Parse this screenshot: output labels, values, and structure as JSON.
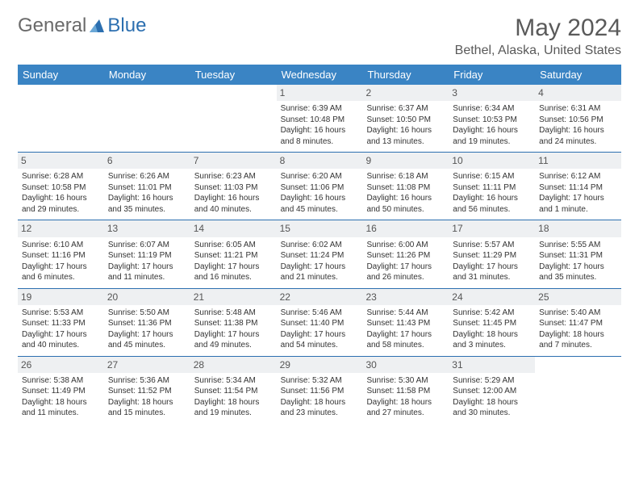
{
  "logo": {
    "general": "General",
    "blue": "Blue",
    "icon_color": "#2c6fb0"
  },
  "header": {
    "month_title": "May 2024",
    "location": "Bethel, Alaska, United States"
  },
  "colors": {
    "header_bg": "#3a84c4",
    "row_border": "#2c6fb0",
    "daynum_bg": "#eef0f2",
    "text": "#333333",
    "title_text": "#5a5a5a"
  },
  "weekdays": [
    "Sunday",
    "Monday",
    "Tuesday",
    "Wednesday",
    "Thursday",
    "Friday",
    "Saturday"
  ],
  "weeks": [
    [
      {
        "day": "",
        "sunrise": "",
        "sunset": "",
        "daylight1": "",
        "daylight2": ""
      },
      {
        "day": "",
        "sunrise": "",
        "sunset": "",
        "daylight1": "",
        "daylight2": ""
      },
      {
        "day": "",
        "sunrise": "",
        "sunset": "",
        "daylight1": "",
        "daylight2": ""
      },
      {
        "day": "1",
        "sunrise": "Sunrise: 6:39 AM",
        "sunset": "Sunset: 10:48 PM",
        "daylight1": "Daylight: 16 hours",
        "daylight2": "and 8 minutes."
      },
      {
        "day": "2",
        "sunrise": "Sunrise: 6:37 AM",
        "sunset": "Sunset: 10:50 PM",
        "daylight1": "Daylight: 16 hours",
        "daylight2": "and 13 minutes."
      },
      {
        "day": "3",
        "sunrise": "Sunrise: 6:34 AM",
        "sunset": "Sunset: 10:53 PM",
        "daylight1": "Daylight: 16 hours",
        "daylight2": "and 19 minutes."
      },
      {
        "day": "4",
        "sunrise": "Sunrise: 6:31 AM",
        "sunset": "Sunset: 10:56 PM",
        "daylight1": "Daylight: 16 hours",
        "daylight2": "and 24 minutes."
      }
    ],
    [
      {
        "day": "5",
        "sunrise": "Sunrise: 6:28 AM",
        "sunset": "Sunset: 10:58 PM",
        "daylight1": "Daylight: 16 hours",
        "daylight2": "and 29 minutes."
      },
      {
        "day": "6",
        "sunrise": "Sunrise: 6:26 AM",
        "sunset": "Sunset: 11:01 PM",
        "daylight1": "Daylight: 16 hours",
        "daylight2": "and 35 minutes."
      },
      {
        "day": "7",
        "sunrise": "Sunrise: 6:23 AM",
        "sunset": "Sunset: 11:03 PM",
        "daylight1": "Daylight: 16 hours",
        "daylight2": "and 40 minutes."
      },
      {
        "day": "8",
        "sunrise": "Sunrise: 6:20 AM",
        "sunset": "Sunset: 11:06 PM",
        "daylight1": "Daylight: 16 hours",
        "daylight2": "and 45 minutes."
      },
      {
        "day": "9",
        "sunrise": "Sunrise: 6:18 AM",
        "sunset": "Sunset: 11:08 PM",
        "daylight1": "Daylight: 16 hours",
        "daylight2": "and 50 minutes."
      },
      {
        "day": "10",
        "sunrise": "Sunrise: 6:15 AM",
        "sunset": "Sunset: 11:11 PM",
        "daylight1": "Daylight: 16 hours",
        "daylight2": "and 56 minutes."
      },
      {
        "day": "11",
        "sunrise": "Sunrise: 6:12 AM",
        "sunset": "Sunset: 11:14 PM",
        "daylight1": "Daylight: 17 hours",
        "daylight2": "and 1 minute."
      }
    ],
    [
      {
        "day": "12",
        "sunrise": "Sunrise: 6:10 AM",
        "sunset": "Sunset: 11:16 PM",
        "daylight1": "Daylight: 17 hours",
        "daylight2": "and 6 minutes."
      },
      {
        "day": "13",
        "sunrise": "Sunrise: 6:07 AM",
        "sunset": "Sunset: 11:19 PM",
        "daylight1": "Daylight: 17 hours",
        "daylight2": "and 11 minutes."
      },
      {
        "day": "14",
        "sunrise": "Sunrise: 6:05 AM",
        "sunset": "Sunset: 11:21 PM",
        "daylight1": "Daylight: 17 hours",
        "daylight2": "and 16 minutes."
      },
      {
        "day": "15",
        "sunrise": "Sunrise: 6:02 AM",
        "sunset": "Sunset: 11:24 PM",
        "daylight1": "Daylight: 17 hours",
        "daylight2": "and 21 minutes."
      },
      {
        "day": "16",
        "sunrise": "Sunrise: 6:00 AM",
        "sunset": "Sunset: 11:26 PM",
        "daylight1": "Daylight: 17 hours",
        "daylight2": "and 26 minutes."
      },
      {
        "day": "17",
        "sunrise": "Sunrise: 5:57 AM",
        "sunset": "Sunset: 11:29 PM",
        "daylight1": "Daylight: 17 hours",
        "daylight2": "and 31 minutes."
      },
      {
        "day": "18",
        "sunrise": "Sunrise: 5:55 AM",
        "sunset": "Sunset: 11:31 PM",
        "daylight1": "Daylight: 17 hours",
        "daylight2": "and 35 minutes."
      }
    ],
    [
      {
        "day": "19",
        "sunrise": "Sunrise: 5:53 AM",
        "sunset": "Sunset: 11:33 PM",
        "daylight1": "Daylight: 17 hours",
        "daylight2": "and 40 minutes."
      },
      {
        "day": "20",
        "sunrise": "Sunrise: 5:50 AM",
        "sunset": "Sunset: 11:36 PM",
        "daylight1": "Daylight: 17 hours",
        "daylight2": "and 45 minutes."
      },
      {
        "day": "21",
        "sunrise": "Sunrise: 5:48 AM",
        "sunset": "Sunset: 11:38 PM",
        "daylight1": "Daylight: 17 hours",
        "daylight2": "and 49 minutes."
      },
      {
        "day": "22",
        "sunrise": "Sunrise: 5:46 AM",
        "sunset": "Sunset: 11:40 PM",
        "daylight1": "Daylight: 17 hours",
        "daylight2": "and 54 minutes."
      },
      {
        "day": "23",
        "sunrise": "Sunrise: 5:44 AM",
        "sunset": "Sunset: 11:43 PM",
        "daylight1": "Daylight: 17 hours",
        "daylight2": "and 58 minutes."
      },
      {
        "day": "24",
        "sunrise": "Sunrise: 5:42 AM",
        "sunset": "Sunset: 11:45 PM",
        "daylight1": "Daylight: 18 hours",
        "daylight2": "and 3 minutes."
      },
      {
        "day": "25",
        "sunrise": "Sunrise: 5:40 AM",
        "sunset": "Sunset: 11:47 PM",
        "daylight1": "Daylight: 18 hours",
        "daylight2": "and 7 minutes."
      }
    ],
    [
      {
        "day": "26",
        "sunrise": "Sunrise: 5:38 AM",
        "sunset": "Sunset: 11:49 PM",
        "daylight1": "Daylight: 18 hours",
        "daylight2": "and 11 minutes."
      },
      {
        "day": "27",
        "sunrise": "Sunrise: 5:36 AM",
        "sunset": "Sunset: 11:52 PM",
        "daylight1": "Daylight: 18 hours",
        "daylight2": "and 15 minutes."
      },
      {
        "day": "28",
        "sunrise": "Sunrise: 5:34 AM",
        "sunset": "Sunset: 11:54 PM",
        "daylight1": "Daylight: 18 hours",
        "daylight2": "and 19 minutes."
      },
      {
        "day": "29",
        "sunrise": "Sunrise: 5:32 AM",
        "sunset": "Sunset: 11:56 PM",
        "daylight1": "Daylight: 18 hours",
        "daylight2": "and 23 minutes."
      },
      {
        "day": "30",
        "sunrise": "Sunrise: 5:30 AM",
        "sunset": "Sunset: 11:58 PM",
        "daylight1": "Daylight: 18 hours",
        "daylight2": "and 27 minutes."
      },
      {
        "day": "31",
        "sunrise": "Sunrise: 5:29 AM",
        "sunset": "Sunset: 12:00 AM",
        "daylight1": "Daylight: 18 hours",
        "daylight2": "and 30 minutes."
      },
      {
        "day": "",
        "sunrise": "",
        "sunset": "",
        "daylight1": "",
        "daylight2": ""
      }
    ]
  ]
}
